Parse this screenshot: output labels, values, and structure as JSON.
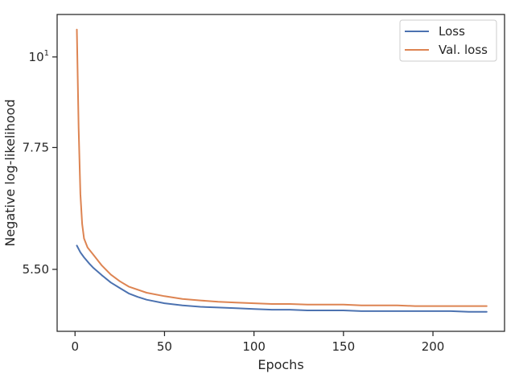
{
  "chart_data": {
    "type": "line",
    "xlabel": "Epochs",
    "ylabel": "Negative log-likelihood",
    "xlim": [
      -10,
      240
    ],
    "ylim": [
      4.62,
      11.27
    ],
    "xticks": [
      {
        "value": 0,
        "label": "0"
      },
      {
        "value": 50,
        "label": "50"
      },
      {
        "value": 100,
        "label": "100"
      },
      {
        "value": 150,
        "label": "150"
      },
      {
        "value": 200,
        "label": "200"
      }
    ],
    "yticks": [
      {
        "value": 5.5,
        "label": "5.50"
      },
      {
        "value": 7.75,
        "label": "7.75"
      },
      {
        "value": 10,
        "label": "10",
        "sup": "1"
      }
    ],
    "grid": false,
    "legend_position": "top-right",
    "series": [
      {
        "name": "Loss",
        "color": "#4c72b0",
        "x": [
          1,
          3,
          5,
          8,
          10,
          15,
          20,
          25,
          30,
          35,
          40,
          50,
          60,
          70,
          80,
          90,
          100,
          110,
          120,
          130,
          140,
          150,
          160,
          170,
          180,
          190,
          200,
          210,
          220,
          230
        ],
        "y": [
          5.88,
          5.77,
          5.69,
          5.59,
          5.53,
          5.41,
          5.3,
          5.22,
          5.14,
          5.09,
          5.05,
          5.0,
          4.97,
          4.95,
          4.94,
          4.93,
          4.92,
          4.91,
          4.91,
          4.9,
          4.9,
          4.9,
          4.89,
          4.89,
          4.89,
          4.89,
          4.89,
          4.89,
          4.88,
          4.88
        ]
      },
      {
        "name": "Val. loss",
        "color": "#dd8452",
        "x": [
          1,
          2,
          3,
          4,
          5,
          7,
          10,
          15,
          20,
          25,
          30,
          40,
          50,
          60,
          70,
          80,
          90,
          100,
          110,
          120,
          130,
          140,
          150,
          160,
          170,
          180,
          190,
          200,
          210,
          220,
          230
        ],
        "y": [
          10.8,
          8.2,
          6.8,
          6.25,
          6.0,
          5.85,
          5.74,
          5.56,
          5.42,
          5.32,
          5.24,
          5.15,
          5.1,
          5.06,
          5.04,
          5.02,
          5.01,
          5.0,
          4.99,
          4.99,
          4.98,
          4.98,
          4.98,
          4.97,
          4.97,
          4.97,
          4.96,
          4.96,
          4.96,
          4.96,
          4.96
        ]
      }
    ]
  }
}
